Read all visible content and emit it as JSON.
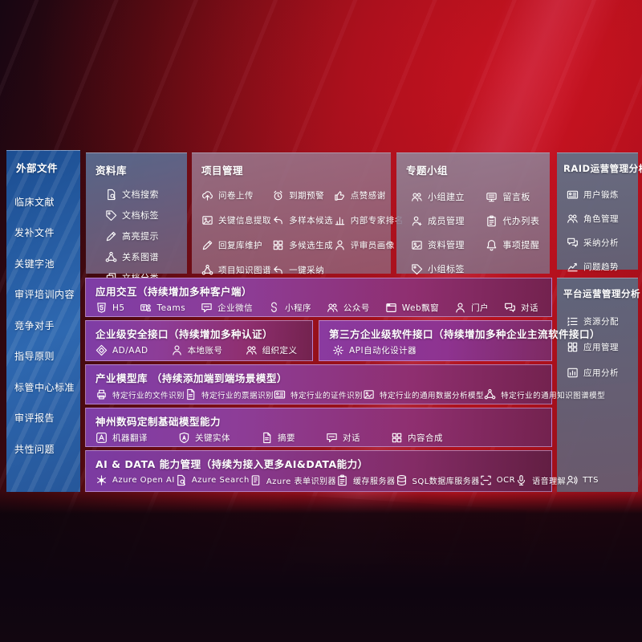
{
  "palette": {
    "bg_red": "#b0121e",
    "bg_dark": "#120610",
    "sidebar_blue": "#2e68b0",
    "purple": "#8d3d98",
    "magenta": "#8f2f70",
    "steel_blue": "#65707f"
  },
  "sidebar": {
    "title": "外部文件",
    "items": [
      "临床文献",
      "发补文件",
      "关键字池",
      "审评培训内容",
      "竞争对手",
      "指导原则",
      "标管中心标准",
      "审评报告",
      "共性问题"
    ]
  },
  "library": {
    "title": "资料库",
    "items": [
      {
        "icon": "doc-search",
        "label": "文档搜索"
      },
      {
        "icon": "tag",
        "label": "文档标签"
      },
      {
        "icon": "pencil",
        "label": "高亮提示"
      },
      {
        "icon": "network",
        "label": "关系图谱"
      },
      {
        "icon": "doc-copy",
        "label": "文档分类"
      }
    ]
  },
  "project": {
    "title": "项目管理",
    "items": [
      {
        "icon": "cloud-up",
        "label": "问卷上传"
      },
      {
        "icon": "alarm",
        "label": "到期预警"
      },
      {
        "icon": "thumb",
        "label": "点赞感谢"
      },
      {
        "icon": "image",
        "label": "关键信息提取"
      },
      {
        "icon": "reply",
        "label": "多样本候选"
      },
      {
        "icon": "rank",
        "label": "内部专家排名"
      },
      {
        "icon": "pencil",
        "label": "回复库维护"
      },
      {
        "icon": "grid",
        "label": "多候选生成"
      },
      {
        "icon": "person",
        "label": "评审员画像"
      },
      {
        "icon": "network",
        "label": "项目知识图谱"
      },
      {
        "icon": "reply",
        "label": "一键采纳"
      }
    ]
  },
  "group": {
    "title": "专题小组",
    "items": [
      {
        "icon": "people",
        "label": "小组建立"
      },
      {
        "icon": "bbs",
        "label": "留言板"
      },
      {
        "icon": "person-plus",
        "label": "成员管理"
      },
      {
        "icon": "clipboard",
        "label": "代办列表"
      },
      {
        "icon": "image",
        "label": "资料管理"
      },
      {
        "icon": "bell",
        "label": "事项提醒"
      },
      {
        "icon": "tag",
        "label": "小组标签"
      }
    ]
  },
  "raid": {
    "title": "RAID运营管理分析",
    "items": [
      {
        "icon": "card",
        "label": "用户锻炼"
      },
      {
        "icon": "people",
        "label": "角色管理"
      },
      {
        "icon": "chat2",
        "label": "采纳分析"
      },
      {
        "icon": "trend",
        "label": "问题趋势"
      }
    ]
  },
  "platform": {
    "title": "平台运营管理分析",
    "items": [
      {
        "icon": "list",
        "label": "资源分配"
      },
      {
        "icon": "grid",
        "label": "应用管理"
      },
      {
        "icon": "chart-box",
        "label": "应用分析"
      }
    ]
  },
  "rows": {
    "interaction": {
      "title": "应用交互（持续增加多种客户端）",
      "items": [
        {
          "icon": "h5",
          "label": "H5"
        },
        {
          "icon": "teams",
          "label": "Teams"
        },
        {
          "icon": "chat",
          "label": "企业微信"
        },
        {
          "icon": "mini",
          "label": "小程序"
        },
        {
          "icon": "people",
          "label": "公众号"
        },
        {
          "icon": "window",
          "label": "Web飘窗"
        },
        {
          "icon": "person",
          "label": "门户"
        },
        {
          "icon": "chat2",
          "label": "对话"
        }
      ]
    },
    "security": {
      "title": "企业级安全接口（持续增加多种认证）",
      "items": [
        {
          "icon": "diamond",
          "label": "AD/AAD"
        },
        {
          "icon": "person",
          "label": "本地账号"
        },
        {
          "icon": "people",
          "label": "组织定义"
        }
      ]
    },
    "thirdparty": {
      "title": "第三方企业级软件接口（持续增加多种企业主流软件接口）",
      "items": [
        {
          "icon": "gear",
          "label": "API自动化设计器"
        }
      ]
    },
    "models": {
      "title": "产业模型库 （持续添加端到端场景模型）",
      "items": [
        {
          "icon": "printer",
          "label": "特定行业的文件识别"
        },
        {
          "icon": "doc",
          "label": "特定行业的票据识别"
        },
        {
          "icon": "card",
          "label": "特定行业的证件识别"
        },
        {
          "icon": "image",
          "label": "特定行业的通用数据分析模型"
        },
        {
          "icon": "network",
          "label": "特定行业的通用知识图谱模型"
        }
      ]
    },
    "basemodel": {
      "title": "神州数码定制基础模型能力",
      "items": [
        {
          "icon": "translate",
          "label": "机器翻译"
        },
        {
          "icon": "shield-a",
          "label": "关键实体"
        },
        {
          "icon": "doc",
          "label": "摘要"
        },
        {
          "icon": "chat",
          "label": "对话"
        },
        {
          "icon": "grid",
          "label": "内容合成"
        }
      ]
    },
    "aidata": {
      "title": "AI & DATA 能力管理（持续为接入更多AI&DATA能力）",
      "items": [
        {
          "icon": "openai",
          "label": "Azure Open AI"
        },
        {
          "icon": "doc-search",
          "label": "Azure Search"
        },
        {
          "icon": "form",
          "label": "Azure 表单识别器"
        },
        {
          "icon": "clipboard",
          "label": "缓存服务器"
        },
        {
          "icon": "db",
          "label": "SQL数据库服务器"
        },
        {
          "icon": "ocr",
          "label": "OCR"
        },
        {
          "icon": "mic",
          "label": "语音理解"
        },
        {
          "icon": "speak",
          "label": "TTS"
        }
      ]
    }
  }
}
